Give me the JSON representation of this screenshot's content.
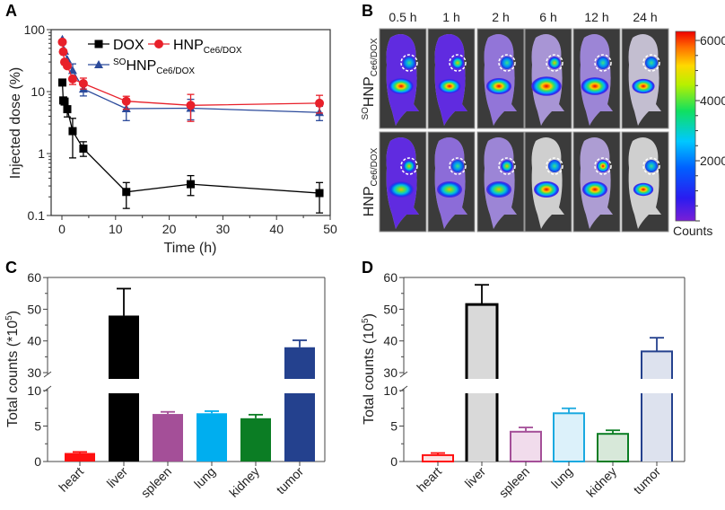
{
  "panels": {
    "a": "A",
    "b": "B",
    "c": "C",
    "d": "D"
  },
  "chart_data": [
    {
      "panel": "A",
      "type": "line",
      "xlabel": "Time (h)",
      "ylabel": "Injected dose (%)",
      "yscale": "log",
      "xlim": [
        -2,
        50
      ],
      "ylim": [
        0.1,
        100
      ],
      "xticks": [
        "0",
        "10",
        "20",
        "30",
        "40",
        "50"
      ],
      "yticks": [
        "0.1",
        "1",
        "10",
        "100"
      ],
      "legend_position": "top",
      "series": [
        {
          "name": {
            "sup": "",
            "main": "DOX",
            "sub": ""
          },
          "color": "#000000",
          "marker": "square",
          "x": [
            0.083,
            0.25,
            0.5,
            1,
            2,
            4,
            12,
            24,
            48
          ],
          "y": [
            14,
            7.2,
            6.9,
            5.2,
            2.3,
            1.2,
            0.24,
            0.32,
            0.23
          ],
          "err_low": [
            null,
            null,
            null,
            3.9,
            0.85,
            0.9,
            0.13,
            0.21,
            0.11
          ],
          "err_high": [
            null,
            null,
            null,
            null,
            3.7,
            1.55,
            0.34,
            0.44,
            0.34
          ]
        },
        {
          "name": {
            "sup": "",
            "main": "HNP",
            "sub": "Ce6/DOX"
          },
          "color": "#e8202a",
          "marker": "circle",
          "x": [
            0.083,
            0.25,
            0.5,
            1,
            2,
            4,
            12,
            24,
            48
          ],
          "y": [
            63,
            44,
            30,
            26,
            16,
            13.5,
            7,
            6,
            6.5
          ],
          "err_low": [
            null,
            null,
            null,
            null,
            13,
            11,
            5.2,
            3.3,
            4.5
          ],
          "err_high": [
            null,
            null,
            null,
            null,
            null,
            16.5,
            8.4,
            9,
            8.7
          ]
        },
        {
          "name": {
            "sup": "SO",
            "main": "HNP",
            "sub": "Ce6/DOX"
          },
          "color": "#2b4a9b",
          "marker": "triangle",
          "x": [
            0.083,
            0.5,
            1,
            2,
            4,
            12,
            24,
            48
          ],
          "y": [
            70,
            45,
            33,
            22,
            11,
            5.3,
            5.4,
            4.6
          ],
          "err_low": [
            null,
            null,
            null,
            null,
            8.5,
            3.4,
            3.5,
            3.4
          ],
          "err_high": [
            null,
            null,
            null,
            28,
            null,
            7,
            7.5,
            5.8
          ]
        }
      ]
    },
    {
      "panel": "B",
      "type": "image-grid",
      "columns": [
        "0.5 h",
        "1 h",
        "2 h",
        "6 h",
        "12 h",
        "24 h"
      ],
      "rows": [
        {
          "sup": "SO",
          "main": "HNP",
          "sub": "Ce6/DOX"
        },
        {
          "sup": "",
          "main": "HNP",
          "sub": "Ce6/DOX"
        }
      ],
      "colorbar": {
        "ticks": [
          "6000",
          "4000",
          "2000"
        ],
        "label": "Counts",
        "range": [
          0,
          6300
        ]
      }
    },
    {
      "panel": "C",
      "type": "bar",
      "style": "filled",
      "ylabel": {
        "main": "Total counts (*10",
        "sup": "5",
        "close": ")"
      },
      "categories": [
        "heart",
        "liver",
        "spleen",
        "lung",
        "kidney",
        "tumor"
      ],
      "values": [
        1.2,
        48,
        6.7,
        6.8,
        6.1,
        38
      ],
      "err_high": [
        1.35,
        56.5,
        7.0,
        7.1,
        6.6,
        40.2
      ],
      "colors": [
        "#ff1010",
        "#000000",
        "#a44f98",
        "#00aeef",
        "#0b7d24",
        "#24418e"
      ],
      "yticks": [
        "0",
        "5",
        "10",
        "30",
        "40",
        "50",
        "60"
      ],
      "ybreak": [
        10,
        30
      ]
    },
    {
      "panel": "D",
      "type": "bar",
      "style": "outlined",
      "ylabel": {
        "main": "Total counts (10",
        "sup": "5",
        "close": ")"
      },
      "categories": [
        "heart",
        "liver",
        "spleen",
        "lung",
        "kidney",
        "tumor"
      ],
      "values": [
        0.9,
        51.5,
        4.2,
        6.8,
        3.9,
        36.7
      ],
      "err_high": [
        1.2,
        57.7,
        4.8,
        7.5,
        4.4,
        41
      ],
      "colors": [
        "#ff1010",
        "#000000",
        "#a44f98",
        "#1aa9e0",
        "#0b7d24",
        "#24418e"
      ],
      "fills": [
        "#fbe3e3",
        "#d9d9d9",
        "#f1dcec",
        "#dcf1fa",
        "#d7e8d9",
        "#dde2ee"
      ],
      "yticks": [
        "0",
        "5",
        "10",
        "30",
        "40",
        "50",
        "60"
      ],
      "ybreak": [
        10,
        30
      ]
    }
  ]
}
